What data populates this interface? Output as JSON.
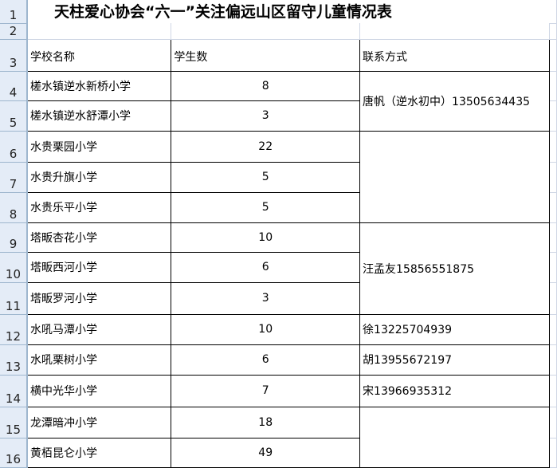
{
  "title": "天柱爱心协会“六一”关注偏远山区留守儿童情况表",
  "row_numbers": [
    "1",
    "2",
    "3",
    "4",
    "5",
    "6",
    "7",
    "8",
    "9",
    "10",
    "11",
    "12",
    "13",
    "14",
    "15",
    "16"
  ],
  "headers": {
    "school": "学校名称",
    "students": "学生数",
    "contact": "联系方式"
  },
  "rows": [
    {
      "school": "槎水镇逆水新桥小学",
      "students": "8"
    },
    {
      "school": "槎水镇逆水舒潭小学",
      "students": "3"
    },
    {
      "school": "水贵栗园小学",
      "students": "22"
    },
    {
      "school": "水贵升旗小学",
      "students": "5"
    },
    {
      "school": "水贵乐平小学",
      "students": "5"
    },
    {
      "school": "塔畈杏花小学",
      "students": "10"
    },
    {
      "school": "塔畈西河小学",
      "students": "6"
    },
    {
      "school": "塔畈罗河小学",
      "students": "3"
    },
    {
      "school": "水吼马潭小学",
      "students": "10"
    },
    {
      "school": "水吼栗树小学",
      "students": "6"
    },
    {
      "school": "横中光华小学",
      "students": "7"
    },
    {
      "school": "龙潭暗冲小学",
      "students": "18"
    },
    {
      "school": "黄栢昆仑小学",
      "students": "49"
    }
  ],
  "contacts": {
    "c4_5": "唐帆（逆水初中）13505634435",
    "c9_11": "汪孟友15856551875",
    "c12": "徐13225704939",
    "c13": "胡13955672197",
    "c14": "宋13966935312"
  }
}
